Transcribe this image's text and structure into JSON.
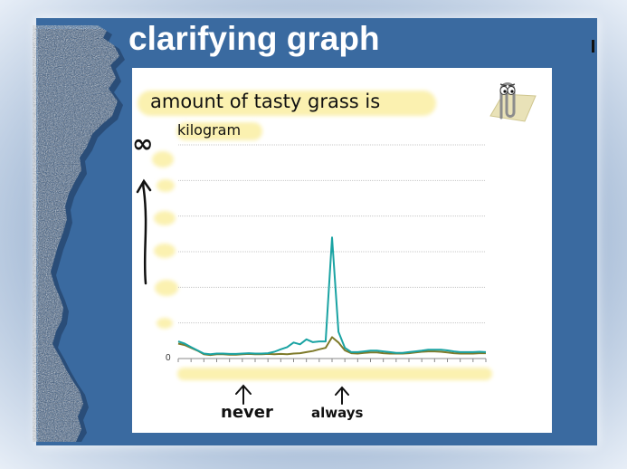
{
  "slide": {
    "title": "clarifying graph"
  },
  "chart_data": {
    "type": "line",
    "title": "amount of tasty grass is",
    "ylabel": "kilogram",
    "y_top_label": "∞",
    "y_zero_label": "0",
    "ylim": [
      0,
      60
    ],
    "grid": true,
    "x": [
      1,
      2,
      3,
      4,
      5,
      6,
      7,
      8,
      9,
      10,
      11,
      12,
      13,
      14,
      15,
      16,
      17,
      18,
      19,
      20,
      21,
      22,
      23,
      24,
      25,
      26,
      27,
      28,
      29,
      30,
      31,
      32,
      33,
      34,
      35,
      36,
      37,
      38,
      39,
      40,
      41,
      42,
      43,
      44,
      45,
      46,
      47,
      48,
      49
    ],
    "series": [
      {
        "color": "#1aa3a3",
        "values": [
          4.8,
          4.2,
          3.2,
          2.3,
          1.4,
          1.2,
          1.4,
          1.4,
          1.3,
          1.3,
          1.4,
          1.5,
          1.4,
          1.4,
          1.5,
          1.9,
          2.6,
          3.2,
          4.5,
          4.0,
          5.4,
          4.6,
          4.8,
          4.8,
          34.0,
          7.5,
          3.0,
          1.8,
          1.8,
          2.0,
          2.2,
          2.2,
          2.0,
          1.8,
          1.6,
          1.6,
          1.8,
          2.0,
          2.2,
          2.5,
          2.5,
          2.5,
          2.3,
          2.0,
          1.8,
          1.8,
          1.8,
          1.9,
          1.8
        ]
      },
      {
        "color": "#7e7a2a",
        "values": [
          4.2,
          3.8,
          3.0,
          2.2,
          1.2,
          1.0,
          1.2,
          1.2,
          1.1,
          1.1,
          1.2,
          1.3,
          1.2,
          1.2,
          1.3,
          1.2,
          1.3,
          1.2,
          1.4,
          1.5,
          1.8,
          2.1,
          2.6,
          3.0,
          6.0,
          4.5,
          2.3,
          1.5,
          1.4,
          1.6,
          1.7,
          1.7,
          1.5,
          1.4,
          1.4,
          1.4,
          1.5,
          1.7,
          1.9,
          2.0,
          2.0,
          1.9,
          1.7,
          1.5,
          1.4,
          1.4,
          1.4,
          1.5,
          1.5
        ]
      }
    ],
    "annotations": [
      {
        "text": "never",
        "arrow": "up"
      },
      {
        "text": "always",
        "arrow": "up"
      }
    ]
  },
  "icons": {
    "clippy": "paperclip-assistant-icon",
    "torn_edge": "torn-paper-edge"
  }
}
